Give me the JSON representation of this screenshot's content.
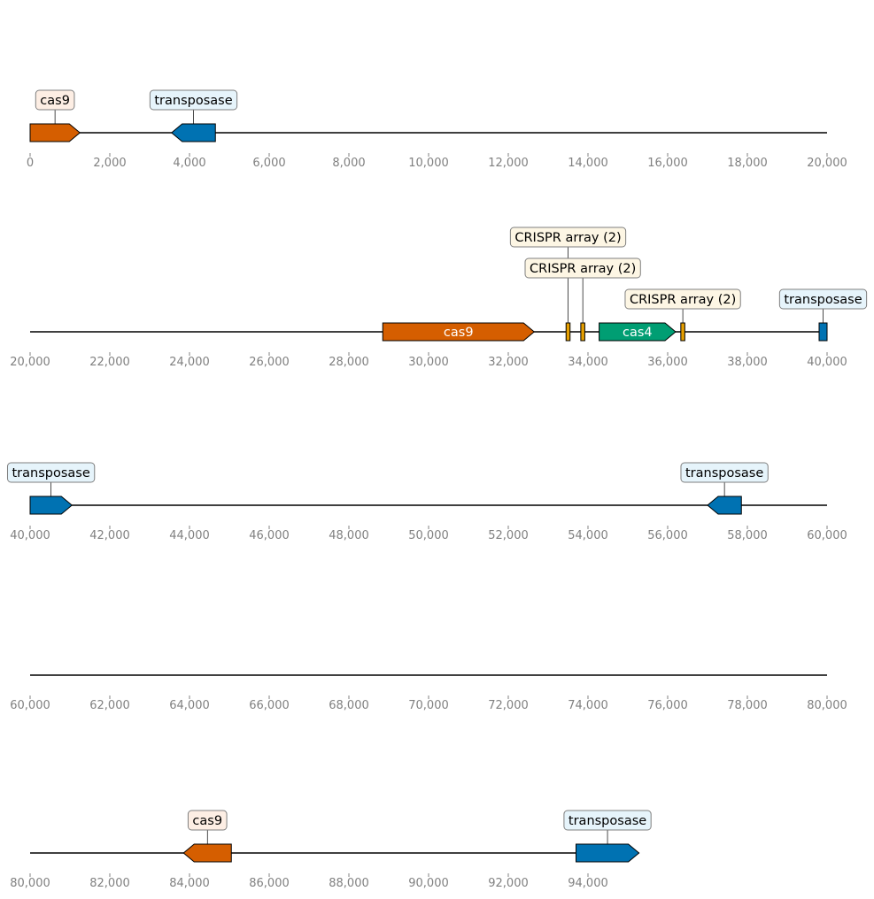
{
  "chart_data": {
    "type": "genome-map",
    "colors": {
      "cas9": "#d55e00",
      "transposase": "#0072b2",
      "cas4": "#009e73",
      "crispr": "#e69f00",
      "cas9_box": "#fdeee4",
      "transposase_box": "#e6f4fb",
      "crispr_box": "#fdf6e4",
      "backbone": "#000000",
      "tick_label": "#808080"
    },
    "rows": [
      {
        "xlim": [
          0,
          20000
        ],
        "ticks": [
          "0",
          "2,000",
          "4,000",
          "6,000",
          "8,000",
          "10,000",
          "12,000",
          "14,000",
          "16,000",
          "18,000",
          "20,000"
        ],
        "backbone_end": 20000,
        "features": [
          {
            "label": "cas9",
            "start": 0,
            "end": 1250,
            "strand": 1,
            "kind": "cas9",
            "label_mode": "box"
          },
          {
            "label": "transposase",
            "start": 3550,
            "end": 4650,
            "strand": -1,
            "kind": "transposase",
            "label_mode": "box"
          }
        ]
      },
      {
        "xlim": [
          20000,
          40000
        ],
        "ticks": [
          "20,000",
          "22,000",
          "24,000",
          "26,000",
          "28,000",
          "30,000",
          "32,000",
          "34,000",
          "36,000",
          "38,000",
          "40,000"
        ],
        "backbone_end": 40000,
        "features": [
          {
            "label": "cas9",
            "start": 28850,
            "end": 32650,
            "strand": 1,
            "kind": "cas9",
            "label_mode": "inside"
          },
          {
            "label": "CRISPR array (2)",
            "start": 33450,
            "end": 33550,
            "strand": 0,
            "kind": "crispr",
            "label_mode": "box",
            "label_level": 3
          },
          {
            "label": "CRISPR array (2)",
            "start": 33820,
            "end": 33920,
            "strand": 0,
            "kind": "crispr",
            "label_mode": "box",
            "label_level": 2
          },
          {
            "label": "cas4",
            "start": 34280,
            "end": 36200,
            "strand": 1,
            "kind": "cas4",
            "label_mode": "inside"
          },
          {
            "label": "CRISPR array (2)",
            "start": 36330,
            "end": 36430,
            "strand": 0,
            "kind": "crispr",
            "label_mode": "box",
            "label_level": 1
          },
          {
            "label": "transposase",
            "start": 39800,
            "end": 40000,
            "strand": 0,
            "kind": "transposase",
            "label_mode": "box",
            "label_level": 1
          }
        ]
      },
      {
        "xlim": [
          40000,
          60000
        ],
        "ticks": [
          "40,000",
          "42,000",
          "44,000",
          "46,000",
          "48,000",
          "50,000",
          "52,000",
          "54,000",
          "56,000",
          "58,000",
          "60,000"
        ],
        "backbone_end": 60000,
        "features": [
          {
            "label": "transposase",
            "start": 40000,
            "end": 41050,
            "strand": 1,
            "kind": "transposase",
            "label_mode": "box"
          },
          {
            "label": "transposase",
            "start": 57000,
            "end": 57850,
            "strand": -1,
            "kind": "transposase",
            "label_mode": "box"
          }
        ]
      },
      {
        "xlim": [
          60000,
          80000
        ],
        "ticks": [
          "60,000",
          "62,000",
          "64,000",
          "66,000",
          "68,000",
          "70,000",
          "72,000",
          "74,000",
          "76,000",
          "78,000",
          "80,000"
        ],
        "backbone_end": 80000,
        "features": []
      },
      {
        "xlim": [
          80000,
          100000
        ],
        "ticks": [
          "80,000",
          "82,000",
          "84,000",
          "86,000",
          "88,000",
          "90,000",
          "92,000",
          "94,000"
        ],
        "backbone_end": 95280,
        "features": [
          {
            "label": "cas9",
            "start": 83850,
            "end": 85050,
            "strand": -1,
            "kind": "cas9",
            "label_mode": "box"
          },
          {
            "label": "transposase",
            "start": 93700,
            "end": 95280,
            "strand": 1,
            "kind": "transposase",
            "label_mode": "box"
          }
        ]
      }
    ]
  }
}
